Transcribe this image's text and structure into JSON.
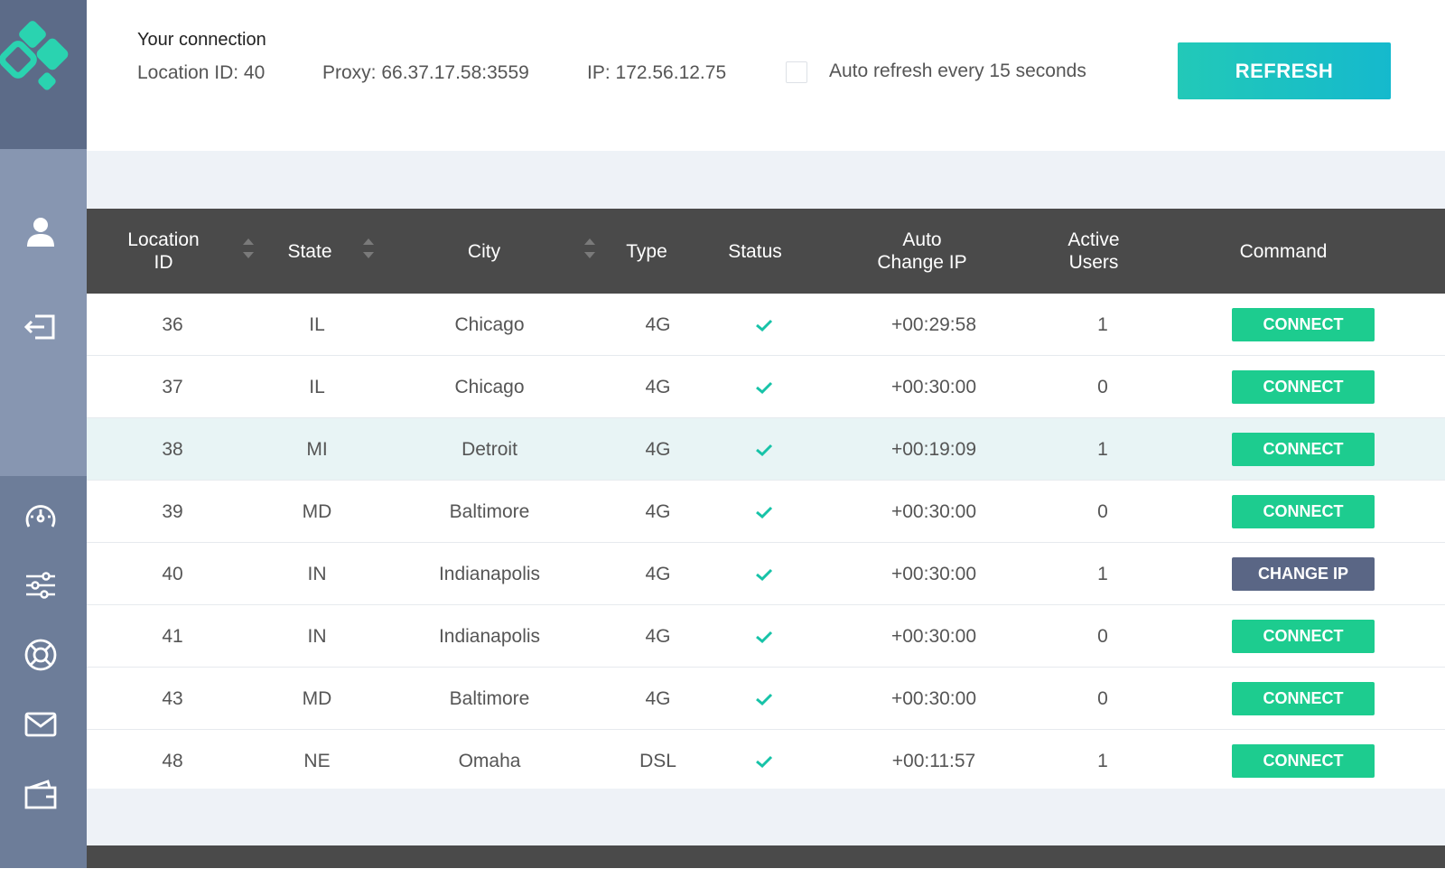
{
  "colors": {
    "accent": "#1dcc8f",
    "refresh": "#15b9cd",
    "sidebar": "#6d7d99",
    "header_row": "#4a4a4a",
    "change_ip": "#5a6685"
  },
  "sidebar": {
    "logo_icon": "app-logo-icon",
    "items": [
      {
        "icon": "user-icon"
      },
      {
        "icon": "logout-icon"
      },
      {
        "icon": "speedometer-icon"
      },
      {
        "icon": "sliders-icon"
      },
      {
        "icon": "lifebuoy-icon"
      },
      {
        "icon": "mail-icon"
      },
      {
        "icon": "wallet-icon"
      }
    ]
  },
  "header": {
    "title": "Your connection",
    "location_id": "Location ID: 40",
    "proxy": "Proxy: 66.37.17.58:3559",
    "ip": "IP: 172.56.12.75",
    "auto_refresh_label": "Auto refresh every 15 seconds",
    "auto_refresh_checked": false,
    "refresh_label": "REFRESH"
  },
  "table": {
    "columns": {
      "location_id": "Location\nID",
      "state": "State",
      "city": "City",
      "type": "Type",
      "status": "Status",
      "auto_change_ip": "Auto\nChange IP",
      "active_users": "Active\nUsers",
      "command": "Command"
    },
    "rows": [
      {
        "id": "36",
        "state": "IL",
        "city": "Chicago",
        "type": "4G",
        "status": "ok",
        "auto": "+00:29:58",
        "users": "1",
        "command": "CONNECT"
      },
      {
        "id": "37",
        "state": "IL",
        "city": "Chicago",
        "type": "4G",
        "status": "ok",
        "auto": "+00:30:00",
        "users": "0",
        "command": "CONNECT"
      },
      {
        "id": "38",
        "state": "MI",
        "city": "Detroit",
        "type": "4G",
        "status": "ok",
        "auto": "+00:19:09",
        "users": "1",
        "command": "CONNECT"
      },
      {
        "id": "39",
        "state": "MD",
        "city": "Baltimore",
        "type": "4G",
        "status": "ok",
        "auto": "+00:30:00",
        "users": "0",
        "command": "CONNECT"
      },
      {
        "id": "40",
        "state": "IN",
        "city": "Indianapolis",
        "type": "4G",
        "status": "ok",
        "auto": "+00:30:00",
        "users": "1",
        "command": "CHANGE IP"
      },
      {
        "id": "41",
        "state": "IN",
        "city": "Indianapolis",
        "type": "4G",
        "status": "ok",
        "auto": "+00:30:00",
        "users": "0",
        "command": "CONNECT"
      },
      {
        "id": "43",
        "state": "MD",
        "city": "Baltimore",
        "type": "4G",
        "status": "ok",
        "auto": "+00:30:00",
        "users": "0",
        "command": "CONNECT"
      },
      {
        "id": "48",
        "state": "NE",
        "city": "Omaha",
        "type": "DSL",
        "status": "ok",
        "auto": "+00:11:57",
        "users": "1",
        "command": "CONNECT"
      }
    ]
  }
}
